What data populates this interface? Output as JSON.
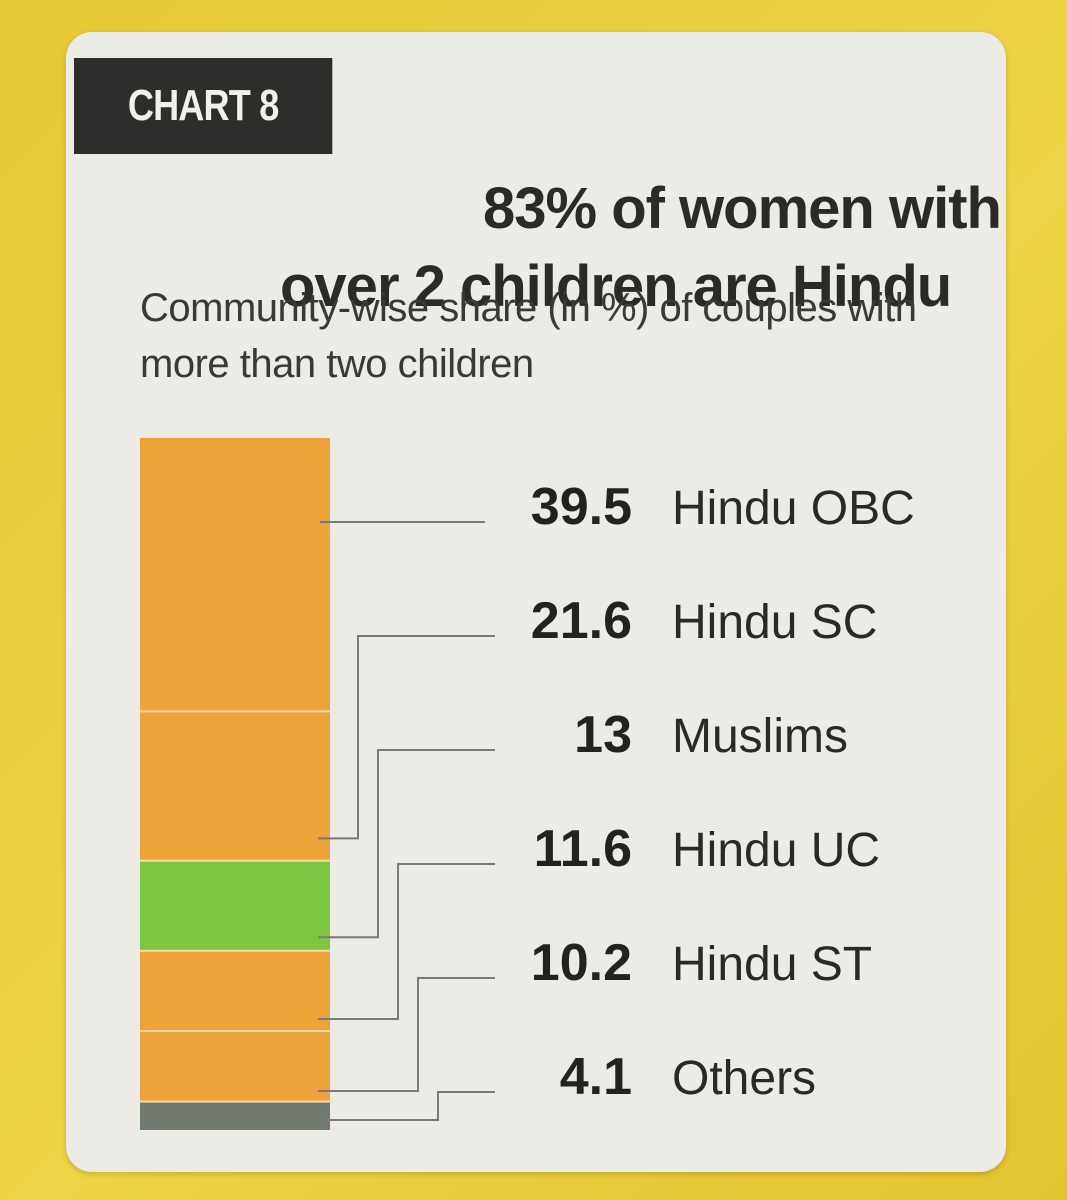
{
  "badge": "CHART 8",
  "headline": {
    "line1": "83% of women with",
    "line2": "over 2 children are Hindu"
  },
  "subtitle": "Community-wise share (in %) of couples with more than two children",
  "colors": {
    "hindu": "#eea33a",
    "muslim": "#7cc640",
    "others": "#6e7b6d",
    "card": "#ecebe6",
    "page": "#e9cd3a"
  },
  "chart_data": {
    "type": "bar",
    "subtype": "stacked-single-column",
    "title": "83% of women with over 2 children are Hindu",
    "subtitle": "Community-wise share (in %) of couples with more than two children",
    "unit": "%",
    "series": [
      {
        "name": "Hindu OBC",
        "value": 39.5,
        "label": "39.5",
        "color": "#eea33a"
      },
      {
        "name": "Hindu SC",
        "value": 21.6,
        "label": "21.6",
        "color": "#eea33a"
      },
      {
        "name": "Muslims",
        "value": 13,
        "label": "13",
        "color": "#7cc640"
      },
      {
        "name": "Hindu UC",
        "value": 11.6,
        "label": "11.6",
        "color": "#eea33a"
      },
      {
        "name": "Hindu ST",
        "value": 10.2,
        "label": "10.2",
        "color": "#eea33a"
      },
      {
        "name": "Others",
        "value": 4.1,
        "label": "4.1",
        "color": "#6e7b6d"
      }
    ]
  }
}
